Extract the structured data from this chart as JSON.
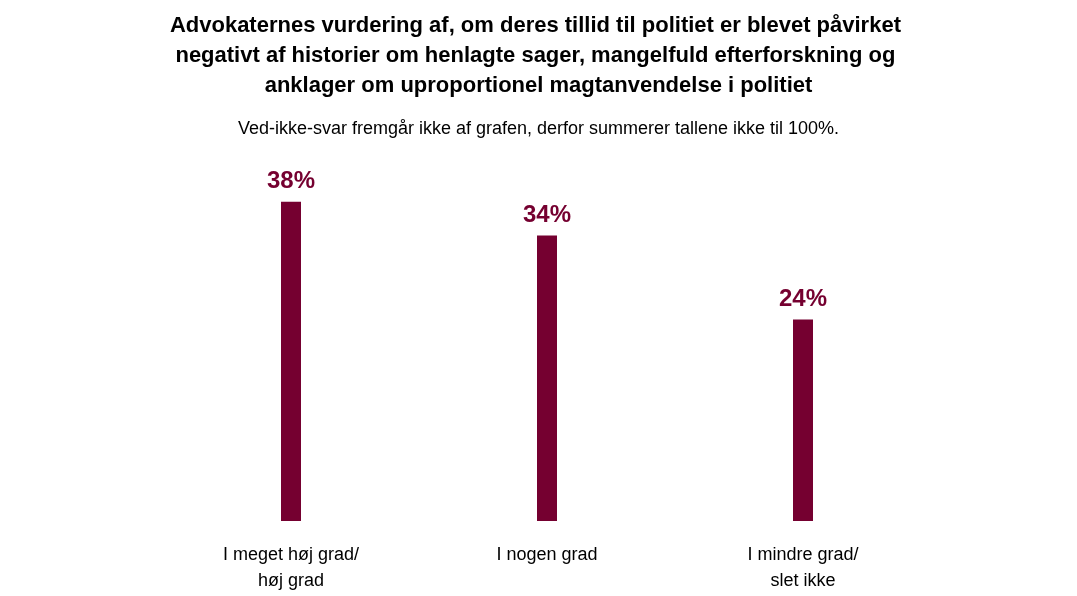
{
  "chart_data": {
    "type": "bar",
    "title": "Advokaternes vurdering af, om deres tillid til politiet er blevet påvirket negativt af historier om henlagte sager, mangelfuld efterforskning og anklager om uproportionel magtanvendelse i politiet",
    "subtitle": "Ved-ikke-svar fremgår ikke af grafen, derfor summerer tallene ikke til 100%.",
    "categories": [
      "I meget høj grad/\nhøj grad",
      "I nogen grad",
      "I mindre grad/\nslet ikke"
    ],
    "values": [
      38,
      34,
      24
    ],
    "value_labels": [
      "38%",
      "34%",
      "24%"
    ],
    "color": "#750030",
    "grid": false
  }
}
